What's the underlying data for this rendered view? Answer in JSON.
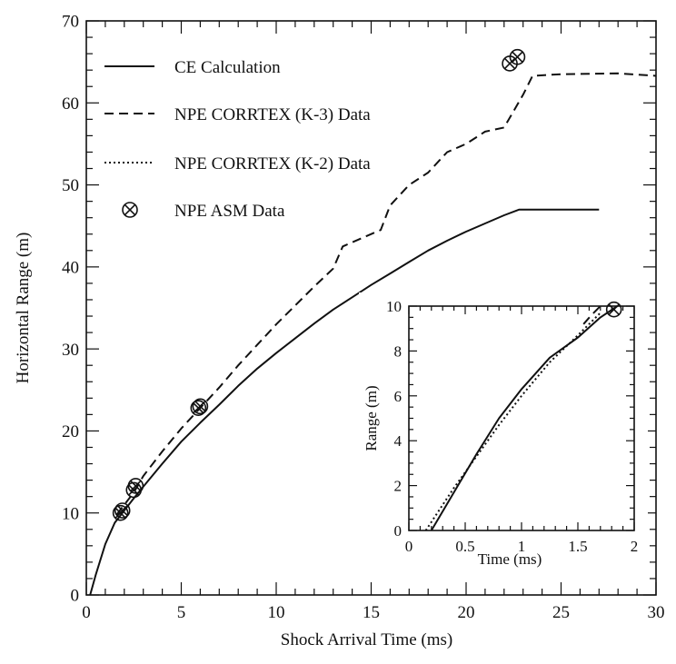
{
  "chart_data": [
    {
      "type": "line",
      "xlabel": "Shock Arrival Time (ms)",
      "ylabel": "Horizontal Range (m)",
      "xlim": [
        0,
        30
      ],
      "ylim": [
        0,
        70
      ],
      "xticks": [
        0,
        5,
        10,
        15,
        20,
        25,
        30
      ],
      "yticks": [
        0,
        10,
        20,
        30,
        40,
        50,
        60,
        70
      ],
      "grid": false,
      "legend_placement": "top-left",
      "series": [
        {
          "name": "CE Calculation",
          "style": "solid",
          "x": [
            0.2,
            0.5,
            1.0,
            1.5,
            2.0,
            2.5,
            3.0,
            4.0,
            5.0,
            6.0,
            7.0,
            8.0,
            9.0,
            10.0,
            11.0,
            12.0,
            13.0,
            14.0,
            15.0,
            16.0,
            17.0,
            18.0,
            19.0,
            20.0,
            21.0,
            22.0,
            22.8,
            23.5,
            25.0,
            27.0
          ],
          "y": [
            0,
            2.5,
            6.2,
            8.8,
            10.3,
            11.8,
            13.2,
            16.0,
            18.7,
            21.0,
            23.2,
            25.5,
            27.6,
            29.5,
            31.3,
            33.1,
            34.8,
            36.3,
            37.8,
            39.2,
            40.6,
            42.0,
            43.2,
            44.3,
            45.3,
            46.3,
            47.0,
            47.0,
            47.0,
            47.0
          ]
        },
        {
          "name": "NPE CORRTEX (K-3) Data",
          "style": "dashed",
          "x": [
            1.6,
            2.0,
            2.5,
            3.0,
            4.0,
            5.0,
            6.0,
            7.0,
            8.0,
            9.0,
            10.0,
            11.0,
            12.0,
            13.0,
            13.5,
            14.0,
            15.0,
            15.5,
            16.0,
            17.0,
            18.0,
            19.0,
            20.0,
            21.0,
            22.0,
            22.5,
            23.0,
            23.5,
            25.0,
            28.0,
            30.0
          ],
          "y": [
            9.8,
            11.0,
            12.5,
            14.5,
            17.5,
            20.3,
            22.8,
            25.3,
            28.0,
            30.5,
            33.0,
            35.3,
            37.6,
            39.8,
            42.5,
            43.0,
            44.0,
            44.5,
            47.5,
            50.0,
            51.5,
            54.0,
            55.0,
            56.5,
            57.0,
            59.0,
            61.0,
            63.3,
            63.5,
            63.6,
            63.3
          ]
        },
        {
          "name": "NPE CORRTEX (K-2) Data",
          "style": "dotted",
          "x": [],
          "y": []
        },
        {
          "name": "NPE ASM Data",
          "style": "circled-x",
          "x": [
            1.8,
            1.9,
            2.5,
            2.6,
            5.9,
            6.0,
            22.3,
            22.7
          ],
          "y": [
            10.0,
            10.3,
            12.8,
            13.3,
            22.8,
            23.0,
            64.8,
            65.6
          ]
        }
      ]
    },
    {
      "type": "line",
      "xlabel": "Time (ms)",
      "ylabel": "Range (m)",
      "xlim": [
        0,
        2
      ],
      "ylim": [
        0,
        10
      ],
      "xticks": [
        0,
        0.5,
        1,
        1.5,
        2
      ],
      "yticks": [
        0,
        2,
        4,
        6,
        8,
        10
      ],
      "grid": false,
      "series": [
        {
          "style": "solid",
          "x": [
            0.2,
            0.4,
            0.6,
            0.8,
            1.0,
            1.25,
            1.5,
            1.7,
            1.85
          ],
          "y": [
            0,
            1.7,
            3.4,
            5.0,
            6.3,
            7.7,
            8.6,
            9.5,
            10.0
          ]
        },
        {
          "style": "dashed",
          "x": [
            1.55,
            1.62,
            1.7
          ],
          "y": [
            9.2,
            9.6,
            10.0
          ]
        },
        {
          "style": "dotted",
          "x": [
            0.15,
            0.4,
            0.6,
            0.8,
            1.0,
            1.25,
            1.5,
            1.7
          ],
          "y": [
            0,
            1.9,
            3.3,
            4.7,
            6.0,
            7.5,
            8.7,
            9.7
          ]
        },
        {
          "style": "circled-x",
          "x": [
            1.82
          ],
          "y": [
            9.85
          ]
        }
      ]
    }
  ]
}
